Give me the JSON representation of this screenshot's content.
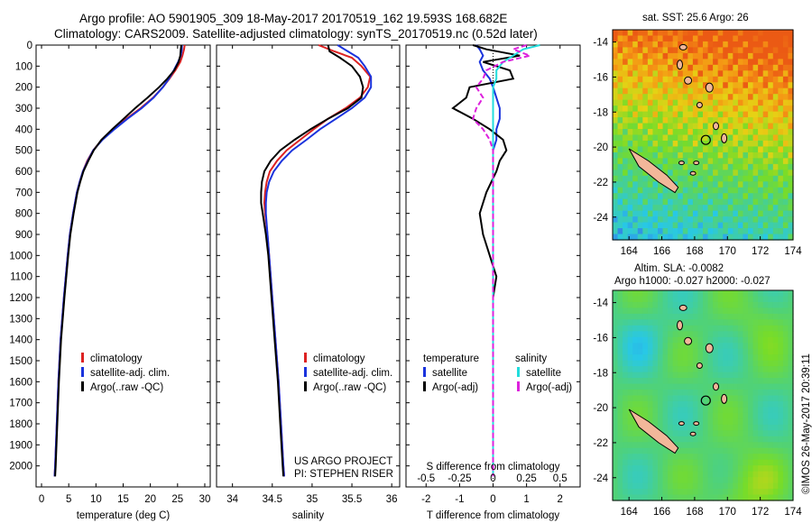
{
  "header": {
    "line1": "Argo profile: AO 5901905_309 18-May-2017 20170519_162 19.593S 168.682E",
    "line2": "Climatology: CARS2009. Satellite-adjusted climatology: synTS_20170519.nc (0.52d later)"
  },
  "colors": {
    "climatology": "#dd2222",
    "satellite": "#1a33dd",
    "argo": "#000000",
    "satellite_s": "#22dddd",
    "argo_adj_s": "#dd22dd",
    "land": "#f2b79a"
  },
  "chart_data": [
    {
      "type": "line",
      "panel": "temperature",
      "xlabel": "temperature (deg C)",
      "ylabel": "",
      "xlim": [
        -1,
        31
      ],
      "ylim": [
        2100,
        0
      ],
      "xticks": [
        0,
        5,
        10,
        15,
        20,
        25,
        30
      ],
      "yticks": [
        0,
        100,
        200,
        300,
        400,
        500,
        600,
        700,
        800,
        900,
        1000,
        1100,
        1200,
        1300,
        1400,
        1500,
        1600,
        1700,
        1800,
        1900,
        2000
      ],
      "depth": [
        0,
        20,
        50,
        80,
        120,
        160,
        200,
        250,
        300,
        350,
        400,
        450,
        500,
        550,
        600,
        650,
        700,
        800,
        900,
        1000,
        1200,
        1400,
        1600,
        1800,
        2000,
        2050
      ],
      "series": [
        {
          "name": "climatology",
          "values": [
            26.3,
            26.2,
            25.9,
            25.5,
            24.6,
            23.5,
            22.3,
            20.5,
            18.2,
            15.6,
            13.3,
            11.1,
            9.5,
            8.4,
            7.6,
            7.0,
            6.5,
            5.8,
            5.2,
            4.8,
            4.1,
            3.5,
            3.1,
            2.8,
            2.5,
            2.4
          ]
        },
        {
          "name": "satellite-adj. clim.",
          "values": [
            25.8,
            25.8,
            25.6,
            25.1,
            24.3,
            23.4,
            22.3,
            20.6,
            18.4,
            15.8,
            13.4,
            11.2,
            9.5,
            8.5,
            7.6,
            7.0,
            6.5,
            5.8,
            5.2,
            4.8,
            4.1,
            3.5,
            3.1,
            2.8,
            2.5,
            2.4
          ]
        },
        {
          "name": "Argo(..raw -QC)",
          "values": [
            25.7,
            25.6,
            25.5,
            25.2,
            24.4,
            23.1,
            21.6,
            19.5,
            17.2,
            15.1,
            13.0,
            11.0,
            9.6,
            8.6,
            7.7,
            7.1,
            6.6,
            5.9,
            5.3,
            4.9,
            4.2,
            3.6,
            3.2,
            2.9,
            2.6,
            2.5
          ]
        }
      ],
      "legend": [
        "climatology",
        "satellite-adj. clim.",
        "Argo(..raw -QC)"
      ]
    },
    {
      "type": "line",
      "panel": "salinity",
      "xlabel": "salinity",
      "ylabel": "",
      "xlim": [
        33.8,
        36.1
      ],
      "ylim": [
        2100,
        0
      ],
      "xticks": [
        34,
        34.5,
        35,
        35.5,
        36
      ],
      "xtick_labels": [
        "34",
        "34.5",
        "35",
        "35.5",
        "36"
      ],
      "depth": [
        0,
        30,
        60,
        100,
        150,
        200,
        250,
        300,
        350,
        400,
        450,
        500,
        550,
        600,
        650,
        700,
        750,
        800,
        900,
        1000,
        1200,
        1400,
        1600,
        1800,
        2000,
        2050
      ],
      "series": [
        {
          "name": "climatology",
          "values": [
            35.08,
            35.28,
            35.5,
            35.62,
            35.73,
            35.7,
            35.6,
            35.42,
            35.2,
            35.02,
            34.85,
            34.68,
            34.56,
            34.47,
            34.43,
            34.41,
            34.4,
            34.41,
            34.44,
            34.46,
            34.5,
            34.54,
            34.58,
            34.61,
            34.64,
            34.65
          ]
        },
        {
          "name": "satellite-adj. clim.",
          "values": [
            35.32,
            35.45,
            35.58,
            35.66,
            35.74,
            35.74,
            35.66,
            35.5,
            35.3,
            35.1,
            34.93,
            34.75,
            34.62,
            34.52,
            34.46,
            34.43,
            34.42,
            34.42,
            34.44,
            34.46,
            34.5,
            34.54,
            34.58,
            34.61,
            34.64,
            34.65
          ]
        },
        {
          "name": "Argo(..raw -QC)",
          "values": [
            35.2,
            35.22,
            35.35,
            35.5,
            35.6,
            35.64,
            35.62,
            35.45,
            35.2,
            34.98,
            34.78,
            34.6,
            34.48,
            34.4,
            34.37,
            34.36,
            34.36,
            34.38,
            34.42,
            34.45,
            34.49,
            34.53,
            34.57,
            34.6,
            34.63,
            34.64
          ]
        }
      ],
      "legend": [
        "climatology",
        "satellite-adj. clim.",
        "Argo(..raw -QC)"
      ],
      "annotation": [
        "US ARGO PROJECT",
        "PI: STEPHEN RISER"
      ]
    },
    {
      "type": "line",
      "panel": "differences",
      "xlabel": "T difference from climatology",
      "x2label": "S difference from climatology",
      "xlim": [
        -2.6,
        2.6
      ],
      "ylim": [
        2100,
        0
      ],
      "xticks": [
        -2,
        -1,
        0,
        1,
        2
      ],
      "x2ticks": [
        -0.5,
        -0.25,
        0,
        0.25,
        0.5
      ],
      "x2tick_labels": [
        "-0.5",
        "-0.25",
        "0",
        "0.25",
        "0.5"
      ],
      "depth": [
        0,
        20,
        50,
        80,
        120,
        160,
        200,
        250,
        300,
        350,
        400,
        450,
        500,
        550,
        600,
        700,
        800,
        900,
        1000,
        1100,
        1200,
        1400,
        1600,
        1800,
        2000,
        2050
      ],
      "series": [
        {
          "name": "temperature satellite",
          "values": [
            -0.5,
            -0.4,
            -0.3,
            -0.4,
            -0.3,
            -0.1,
            0.0,
            0.1,
            0.2,
            0.2,
            0.1,
            0.1,
            0.0,
            0.0,
            0.0,
            0.0,
            0.0,
            0.0,
            0.0,
            0.0,
            0.0,
            0.0,
            0.0,
            0.0,
            0.0,
            0.0
          ]
        },
        {
          "name": "temperature Argo(-adj)",
          "values": [
            -0.6,
            -0.2,
            0.8,
            -0.3,
            0.5,
            0.6,
            -0.7,
            -0.8,
            -1.2,
            -0.6,
            -0.1,
            0.3,
            0.4,
            0.2,
            0.1,
            -0.2,
            -0.4,
            -0.3,
            -0.1,
            0.1,
            0.0,
            0.0,
            0.0,
            0.0,
            0.0,
            0.0
          ]
        },
        {
          "name": "salinity satellite",
          "values": [
            1.4,
            0.9,
            0.6,
            0.3,
            0.1,
            0.1,
            0.0,
            0.0,
            0.0,
            0.0,
            0.0,
            0.0,
            0.0,
            0.0,
            0.0,
            0.0,
            0.0,
            0.0,
            0.0,
            0.0,
            0.0,
            0.0,
            0.0,
            0.0,
            0.0,
            0.0
          ]
        },
        {
          "name": "salinity Argo(-adj)",
          "values": [
            1.0,
            0.6,
            1.1,
            0.3,
            -0.2,
            -0.3,
            -0.5,
            -0.3,
            -0.5,
            -0.6,
            -0.3,
            -0.1,
            0.0,
            0.0,
            0.0,
            0.0,
            0.0,
            0.0,
            0.0,
            0.0,
            0.0,
            0.0,
            0.0,
            0.0,
            0.0,
            0.0
          ]
        }
      ],
      "legend_headers": [
        "temperature",
        "salinity"
      ],
      "legend": [
        "satellite",
        "Argo(-adj)",
        "satellite",
        "Argo(-adj)"
      ]
    }
  ],
  "maps": {
    "top": {
      "title": "sat. SST: 25.6 Argo: 26",
      "yticks": [
        "-14",
        "-16",
        "-18",
        "-20",
        "-22",
        "-24"
      ],
      "xticks": [
        "164",
        "166",
        "168",
        "170",
        "172",
        "174"
      ]
    },
    "bottom": {
      "title1": "Altim. SLA: -0.0082",
      "title2": "Argo h1000: -0.027 h2000: -0.027",
      "yticks": [
        "-14",
        "-16",
        "-18",
        "-20",
        "-22",
        "-24"
      ],
      "xticks": [
        "164",
        "166",
        "168",
        "170",
        "172",
        "174"
      ]
    }
  },
  "footer": {
    "credit": "©IMOS 26-May-2017 20:39:11"
  }
}
